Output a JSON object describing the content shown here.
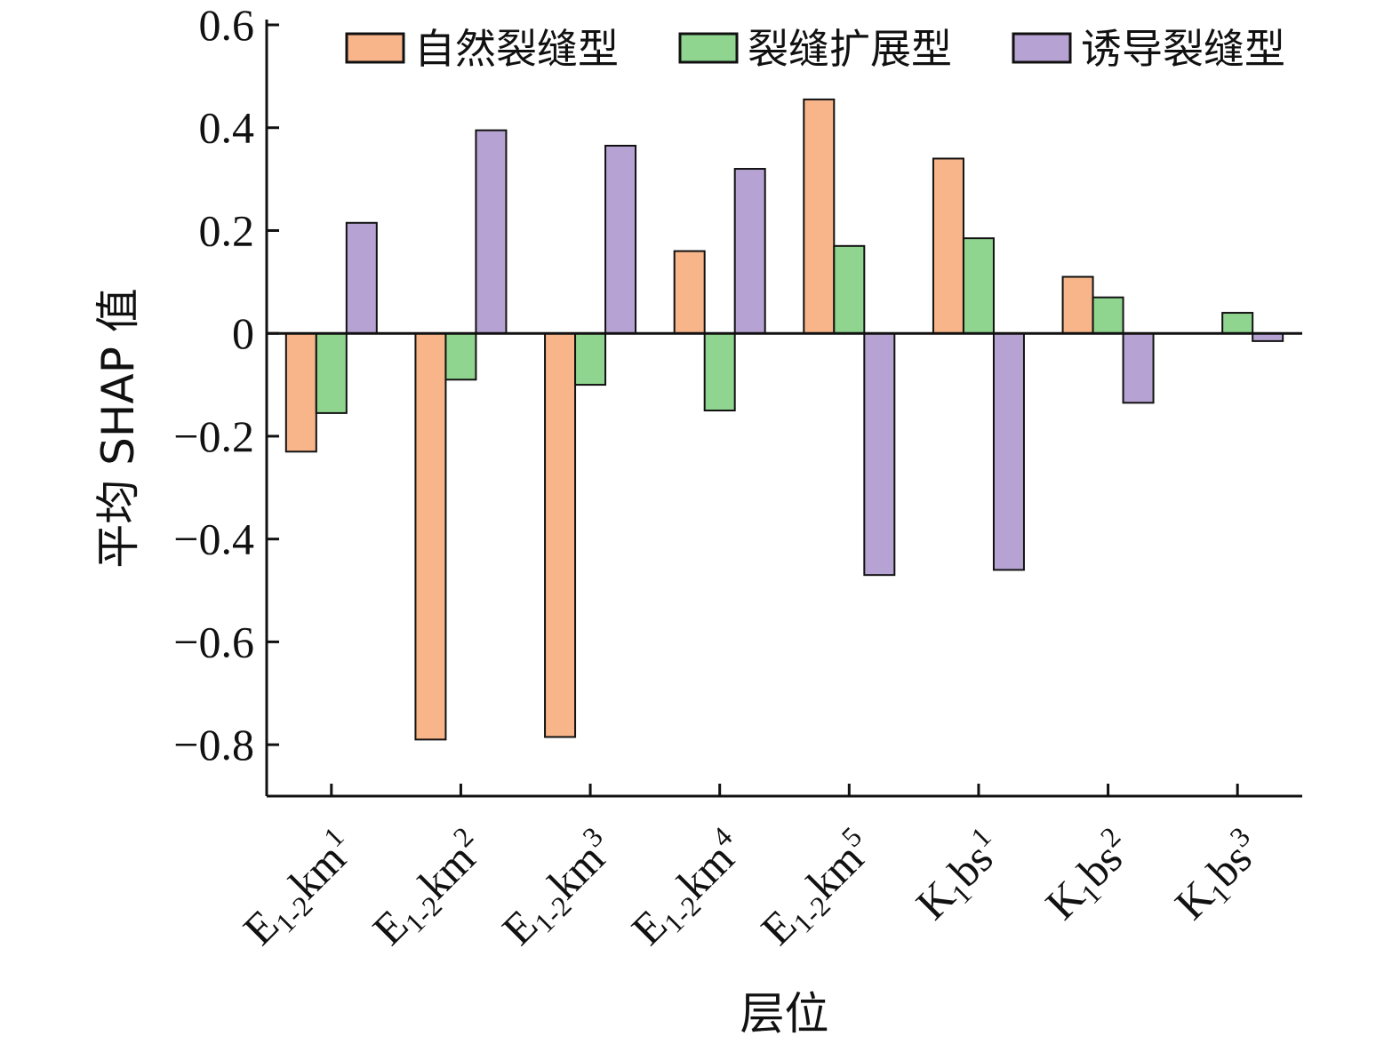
{
  "chart_data": {
    "type": "bar",
    "title": "",
    "xlabel": "层位",
    "ylabel": "平均 SHAP 值",
    "ylim": [
      -0.9,
      0.6
    ],
    "yticks": [
      0.6,
      0.4,
      0.2,
      0,
      -0.2,
      -0.4,
      -0.6,
      -0.8
    ],
    "ytick_labels": [
      "0.6",
      "0.4",
      "0.2",
      "0",
      "−0.2",
      "−0.4",
      "−0.6",
      "−0.8"
    ],
    "legend_position": "top",
    "grid": false,
    "categories": [
      {
        "base": "E",
        "sub": "1-2",
        "mid": "km",
        "sup": "1"
      },
      {
        "base": "E",
        "sub": "1-2",
        "mid": "km",
        "sup": "2"
      },
      {
        "base": "E",
        "sub": "1-2",
        "mid": "km",
        "sup": "3"
      },
      {
        "base": "E",
        "sub": "1-2",
        "mid": "km",
        "sup": "4"
      },
      {
        "base": "E",
        "sub": "1-2",
        "mid": "km",
        "sup": "5"
      },
      {
        "base": "K",
        "sub": "1",
        "mid": "bs",
        "sup": "1"
      },
      {
        "base": "K",
        "sub": "1",
        "mid": "bs",
        "sup": "2"
      },
      {
        "base": "K",
        "sub": "1",
        "mid": "bs",
        "sup": "3"
      }
    ],
    "series": [
      {
        "name": "自然裂缝型",
        "color": "#f7b589",
        "values": [
          -0.23,
          -0.79,
          -0.785,
          0.16,
          0.455,
          0.34,
          0.11,
          0
        ]
      },
      {
        "name": "裂缝扩展型",
        "color": "#8fd58f",
        "values": [
          -0.155,
          -0.09,
          -0.1,
          -0.15,
          0.17,
          0.185,
          0.07,
          0.04
        ]
      },
      {
        "name": "诱导裂缝型",
        "color": "#b7a3d3",
        "values": [
          0.215,
          0.395,
          0.365,
          0.32,
          -0.47,
          -0.46,
          -0.135,
          -0.015
        ]
      }
    ]
  }
}
